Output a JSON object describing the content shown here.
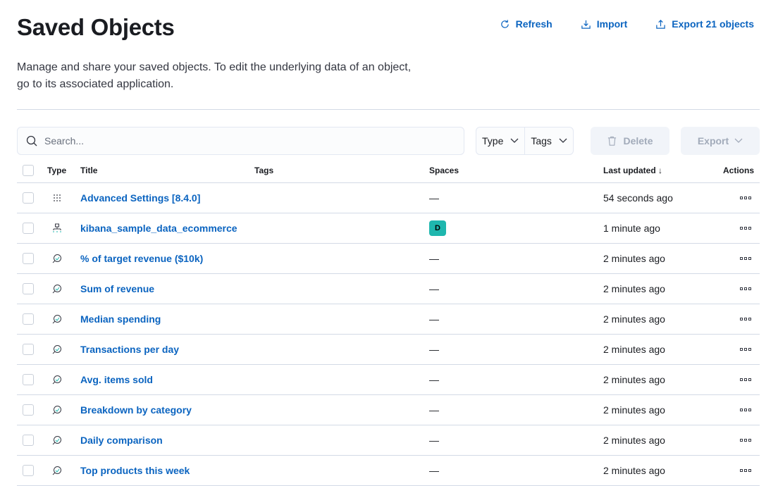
{
  "header": {
    "title": "Saved Objects",
    "refresh": "Refresh",
    "import": "Import",
    "export_all": "Export 21 objects",
    "description": "Manage and share your saved objects. To edit the underlying data of an object, go to its associated application."
  },
  "toolbar": {
    "search_placeholder": "Search...",
    "type_filter": "Type",
    "tags_filter": "Tags",
    "delete": "Delete",
    "export": "Export"
  },
  "table": {
    "columns": {
      "type": "Type",
      "title": "Title",
      "tags": "Tags",
      "spaces": "Spaces",
      "last_updated": "Last updated",
      "actions": "Actions"
    },
    "rows": [
      {
        "type": "advanced-settings",
        "title": "Advanced Settings [8.4.0]",
        "spaces": "—",
        "updated": "54 seconds ago"
      },
      {
        "type": "index-pattern",
        "title": "kibana_sample_data_ecommerce",
        "spaces": "D",
        "updated": "1 minute ago"
      },
      {
        "type": "visualization",
        "title": "% of target revenue ($10k)",
        "spaces": "—",
        "updated": "2 minutes ago"
      },
      {
        "type": "visualization",
        "title": "Sum of revenue",
        "spaces": "—",
        "updated": "2 minutes ago"
      },
      {
        "type": "visualization",
        "title": "Median spending",
        "spaces": "—",
        "updated": "2 minutes ago"
      },
      {
        "type": "visualization",
        "title": "Transactions per day",
        "spaces": "—",
        "updated": "2 minutes ago"
      },
      {
        "type": "visualization",
        "title": "Avg. items sold",
        "spaces": "—",
        "updated": "2 minutes ago"
      },
      {
        "type": "visualization",
        "title": "Breakdown by category",
        "spaces": "—",
        "updated": "2 minutes ago"
      },
      {
        "type": "visualization",
        "title": "Daily comparison",
        "spaces": "—",
        "updated": "2 minutes ago"
      },
      {
        "type": "visualization",
        "title": "Top products this week",
        "spaces": "—",
        "updated": "2 minutes ago"
      }
    ]
  },
  "colors": {
    "link": "#0b64c0",
    "space_badge": "#1fb7ae"
  }
}
